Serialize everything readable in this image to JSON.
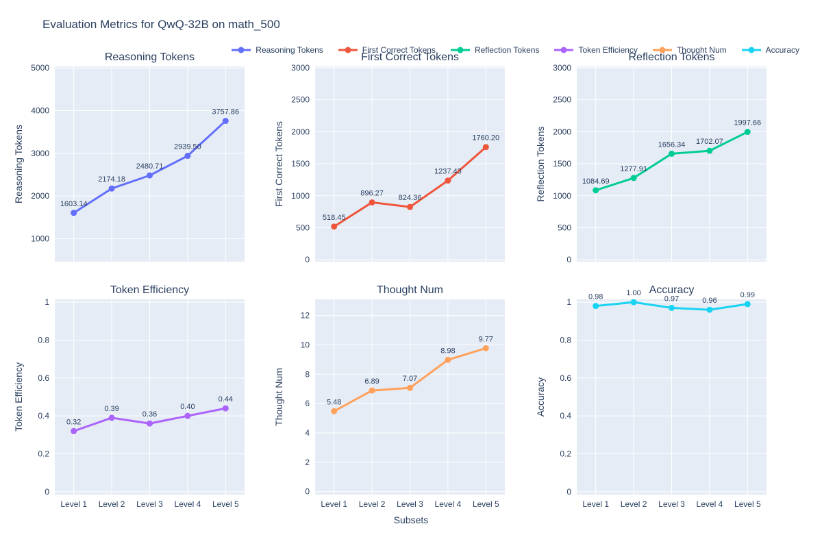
{
  "figure": {
    "title": "Evaluation Metrics for QwQ-32B on math_500",
    "xaxis_title": "Subsets"
  },
  "colors": {
    "text": "#2a3f5f",
    "plot_bg": "#E5ECF6",
    "grid": "#ffffff",
    "series_palette": [
      "#636EFA",
      "#EF553B",
      "#00CC96",
      "#AB63FA",
      "#FFA15A",
      "#19D3F3"
    ]
  },
  "legend": {
    "items": [
      {
        "label": "Reasoning Tokens",
        "color": "#636EFA"
      },
      {
        "label": "First Correct Tokens",
        "color": "#EF553B"
      },
      {
        "label": "Reflection Tokens",
        "color": "#00CC96"
      },
      {
        "label": "Token Efficiency",
        "color": "#AB63FA"
      },
      {
        "label": "Thought Num",
        "color": "#FFA15A"
      },
      {
        "label": "Accuracy",
        "color": "#19D3F3"
      }
    ]
  },
  "chart_data": [
    {
      "type": "line",
      "title": "Reasoning Tokens",
      "ylabel": "Reasoning Tokens",
      "color": "#636EFA",
      "categories": [
        "Level 1",
        "Level 2",
        "Level 3",
        "Level 4",
        "Level 5"
      ],
      "values": [
        1603.14,
        2174.18,
        2480.71,
        2939.5,
        3757.86
      ],
      "point_labels": [
        "1603.14",
        "2174.18",
        "2480.71",
        "2939.50",
        "3757.86"
      ],
      "ylim": [
        460,
        5035
      ],
      "yticks": [
        1000,
        2000,
        3000,
        4000,
        5000
      ],
      "ytick_labels": [
        "1000",
        "2000",
        "3000",
        "4000",
        "5000"
      ],
      "show_x_tick_labels": false
    },
    {
      "type": "line",
      "title": "First Correct Tokens",
      "ylabel": "First Correct Tokens",
      "color": "#EF553B",
      "categories": [
        "Level 1",
        "Level 2",
        "Level 3",
        "Level 4",
        "Level 5"
      ],
      "values": [
        518.45,
        896.27,
        824.36,
        1237.43,
        1760.2
      ],
      "point_labels": [
        "518.45",
        "896.27",
        "824.36",
        "1237.43",
        "1760.20"
      ],
      "ylim": [
        -30,
        3020
      ],
      "yticks": [
        0,
        500,
        1000,
        1500,
        2000,
        2500,
        3000
      ],
      "ytick_labels": [
        "0",
        "500",
        "1000",
        "1500",
        "2000",
        "2500",
        "3000"
      ],
      "show_x_tick_labels": false
    },
    {
      "type": "line",
      "title": "Reflection Tokens",
      "ylabel": "Reflection Tokens",
      "color": "#00CC96",
      "categories": [
        "Level 1",
        "Level 2",
        "Level 3",
        "Level 4",
        "Level 5"
      ],
      "values": [
        1084.69,
        1277.91,
        1656.34,
        1702.07,
        1997.66
      ],
      "point_labels": [
        "1084.69",
        "1277.91",
        "1656.34",
        "1702.07",
        "1997.66"
      ],
      "ylim": [
        -30,
        3020
      ],
      "yticks": [
        0,
        500,
        1000,
        1500,
        2000,
        2500,
        3000
      ],
      "ytick_labels": [
        "0",
        "500",
        "1000",
        "1500",
        "2000",
        "2500",
        "3000"
      ],
      "show_x_tick_labels": false
    },
    {
      "type": "line",
      "title": "Token Efficiency",
      "ylabel": "Token Efficiency",
      "color": "#AB63FA",
      "categories": [
        "Level 1",
        "Level 2",
        "Level 3",
        "Level 4",
        "Level 5"
      ],
      "values": [
        0.32,
        0.39,
        0.36,
        0.4,
        0.44
      ],
      "point_labels": [
        "0.32",
        "0.39",
        "0.36",
        "0.40",
        "0.44"
      ],
      "ylim": [
        -0.015,
        1.015
      ],
      "yticks": [
        0,
        0.2,
        0.4,
        0.6,
        0.8,
        1
      ],
      "ytick_labels": [
        "0",
        "0.2",
        "0.4",
        "0.6",
        "0.8",
        "1"
      ],
      "show_x_tick_labels": true
    },
    {
      "type": "line",
      "title": "Thought Num",
      "ylabel": "Thought Num",
      "color": "#FFA15A",
      "categories": [
        "Level 1",
        "Level 2",
        "Level 3",
        "Level 4",
        "Level 5"
      ],
      "values": [
        5.48,
        6.89,
        7.07,
        8.98,
        9.77
      ],
      "point_labels": [
        "5.48",
        "6.89",
        "7.07",
        "8.98",
        "9.77"
      ],
      "ylim": [
        -0.2,
        13.1
      ],
      "yticks": [
        0,
        2,
        4,
        6,
        8,
        10,
        12
      ],
      "ytick_labels": [
        "0",
        "2",
        "4",
        "6",
        "8",
        "10",
        "12"
      ],
      "show_x_tick_labels": true
    },
    {
      "type": "line",
      "title": "Accuracy",
      "ylabel": "Accuracy",
      "color": "#19D3F3",
      "categories": [
        "Level 1",
        "Level 2",
        "Level 3",
        "Level 4",
        "Level 5"
      ],
      "values": [
        0.98,
        1.0,
        0.97,
        0.96,
        0.99
      ],
      "point_labels": [
        "0.98",
        "1.00",
        "0.97",
        "0.96",
        "0.99"
      ],
      "ylim": [
        -0.015,
        1.015
      ],
      "yticks": [
        0,
        0.2,
        0.4,
        0.6,
        0.8,
        1
      ],
      "ytick_labels": [
        "0",
        "0.2",
        "0.4",
        "0.6",
        "0.8",
        "1"
      ],
      "show_x_tick_labels": true
    }
  ]
}
